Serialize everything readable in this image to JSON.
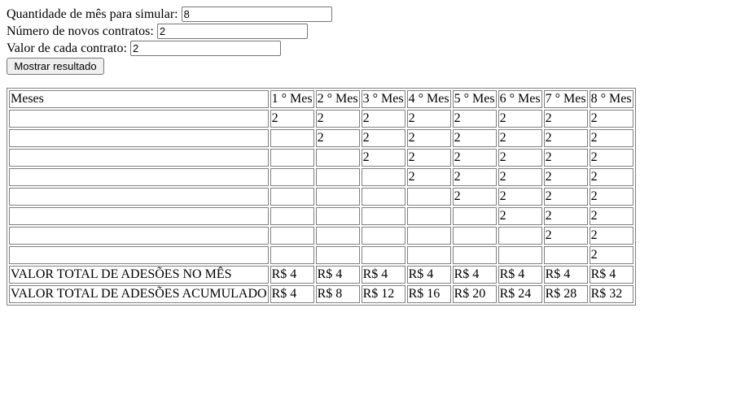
{
  "form": {
    "months_label": "Quantidade de mês para simular:",
    "months_value": "8",
    "contracts_label": "Número de novos contratos:",
    "contracts_value": "2",
    "value_label": "Valor de cada contrato:",
    "value_value": "2",
    "submit_label": "Mostrar resultado"
  },
  "table": {
    "header_label": "Meses",
    "months": [
      "1 ° Mes",
      "2 ° Mes",
      "3 ° Mes",
      "4 ° Mes",
      "5 ° Mes",
      "6 ° Mes",
      "7 ° Mes",
      "8 ° Mes"
    ],
    "rows": [
      [
        "2",
        "2",
        "2",
        "2",
        "2",
        "2",
        "2",
        "2"
      ],
      [
        "",
        "2",
        "2",
        "2",
        "2",
        "2",
        "2",
        "2"
      ],
      [
        "",
        "",
        "2",
        "2",
        "2",
        "2",
        "2",
        "2"
      ],
      [
        "",
        "",
        "",
        "2",
        "2",
        "2",
        "2",
        "2"
      ],
      [
        "",
        "",
        "",
        "",
        "2",
        "2",
        "2",
        "2"
      ],
      [
        "",
        "",
        "",
        "",
        "",
        "2",
        "2",
        "2"
      ],
      [
        "",
        "",
        "",
        "",
        "",
        "",
        "2",
        "2"
      ],
      [
        "",
        "",
        "",
        "",
        "",
        "",
        "",
        "2"
      ]
    ],
    "monthly_label": "VALOR TOTAL DE ADESÕES NO MÊS",
    "monthly": [
      "R$ 4",
      "R$ 4",
      "R$ 4",
      "R$ 4",
      "R$ 4",
      "R$ 4",
      "R$ 4",
      "R$ 4"
    ],
    "cumulative_label": "VALOR TOTAL DE ADESÕES ACUMULADO",
    "cumulative": [
      "R$ 4",
      "R$ 8",
      "R$ 12",
      "R$ 16",
      "R$ 20",
      "R$ 24",
      "R$ 28",
      "R$ 32"
    ]
  }
}
